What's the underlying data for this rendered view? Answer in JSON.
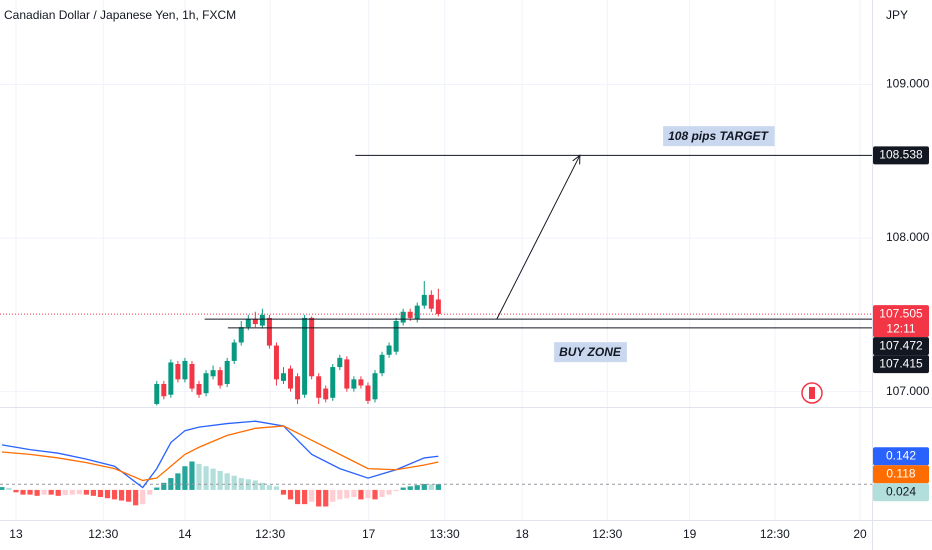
{
  "header": {
    "title": "Canadian Dollar / Japanese Yen, 1h, FXCM",
    "currency": "JPY",
    "countdown": "12:11"
  },
  "chart_data": [
    {
      "type": "candlestick",
      "x": [
        20,
        21,
        22,
        23,
        24,
        25,
        26,
        27,
        28,
        29,
        30,
        31,
        32,
        33,
        34,
        35,
        36,
        37,
        38,
        39,
        40,
        41,
        42,
        43,
        44,
        45,
        46,
        47,
        48,
        49,
        50,
        51,
        52,
        53,
        54,
        55,
        56,
        57,
        58,
        59,
        60
      ],
      "open": [
        106.92,
        107.05,
        106.98,
        107.18,
        107.08,
        107.18,
        107.05,
        106.99,
        107.1,
        107.14,
        107.05,
        107.2,
        107.32,
        107.42,
        107.47,
        107.43,
        107.48,
        107.3,
        107.07,
        107.15,
        107.1,
        106.98,
        107.48,
        107.1,
        107.02,
        106.96,
        107.16,
        107.21,
        107.02,
        107.08,
        107.04,
        106.95,
        107.12,
        107.24,
        107.26,
        107.45,
        107.52,
        107.47,
        107.56,
        107.63,
        107.6
      ],
      "high": [
        107.07,
        107.07,
        107.21,
        107.2,
        107.22,
        107.2,
        107.07,
        107.14,
        107.17,
        107.16,
        107.22,
        107.34,
        107.46,
        107.5,
        107.52,
        107.54,
        107.5,
        107.32,
        107.16,
        107.17,
        107.12,
        107.5,
        107.49,
        107.12,
        107.04,
        107.18,
        107.24,
        107.23,
        107.1,
        107.1,
        107.06,
        107.14,
        107.26,
        107.32,
        107.48,
        107.54,
        107.54,
        107.58,
        107.72,
        107.66,
        107.67
      ],
      "low": [
        106.91,
        106.95,
        106.96,
        107.06,
        107.06,
        107.0,
        106.96,
        106.97,
        107.08,
        107.02,
        107.03,
        107.18,
        107.3,
        107.4,
        107.42,
        107.41,
        107.28,
        107.04,
        107.05,
        107.0,
        106.92,
        106.96,
        107.08,
        106.92,
        106.93,
        106.94,
        107.14,
        107.0,
        107.0,
        107.02,
        106.92,
        106.93,
        107.1,
        107.22,
        107.24,
        107.43,
        107.46,
        107.45,
        107.54,
        107.52,
        107.49
      ],
      "close": [
        107.05,
        106.97,
        107.19,
        107.08,
        107.2,
        107.02,
        106.98,
        107.12,
        107.14,
        107.04,
        107.2,
        107.32,
        107.42,
        107.47,
        107.44,
        107.5,
        107.3,
        107.08,
        107.12,
        107.02,
        106.95,
        107.48,
        107.1,
        106.96,
        106.95,
        107.16,
        107.22,
        107.02,
        107.08,
        107.04,
        106.94,
        107.12,
        107.24,
        107.3,
        107.46,
        107.52,
        107.48,
        107.56,
        107.63,
        107.54,
        107.505
      ],
      "up_color": "#089981",
      "down_color": "#f23645",
      "xlim": [
        -2.27,
        121.6
      ],
      "xticks": [
        {
          "value": 0,
          "label": "13"
        },
        {
          "value": 12.4,
          "label": "12:30"
        },
        {
          "value": 24,
          "label": "14"
        },
        {
          "value": 36.1,
          "label": "12:30"
        },
        {
          "value": 50.1,
          "label": "17"
        },
        {
          "value": 60.9,
          "label": "13:30"
        },
        {
          "value": 71.9,
          "label": "18"
        },
        {
          "value": 84,
          "label": "12:30"
        },
        {
          "value": 95.7,
          "label": "19"
        },
        {
          "value": 107.8,
          "label": "12:30"
        },
        {
          "value": 119.9,
          "label": "20"
        }
      ],
      "ylim": [
        106.9,
        109.55
      ],
      "yticks": [
        {
          "value": 107,
          "label": "107.000"
        },
        {
          "value": 108,
          "label": "108.000"
        },
        {
          "value": 109,
          "label": "109.000"
        }
      ],
      "grid": true,
      "levels": [
        {
          "value": 108.538,
          "from": 48.2
        },
        {
          "value": 107.472,
          "from": 26.8
        },
        {
          "value": 107.415,
          "from": 30.1
        }
      ],
      "arrow": {
        "x": [
          68.3,
          80.1
        ],
        "y": [
          107.472,
          108.538
        ]
      },
      "annotations": [
        "108 pips TARGET",
        "BUY ZONE"
      ]
    },
    {
      "type": "macd",
      "x": [
        -2,
        2,
        6,
        10,
        14,
        18,
        20,
        22,
        24,
        26,
        30,
        34,
        38,
        42,
        46,
        50,
        54,
        58,
        60
      ],
      "series": [
        {
          "color": "#2962ff",
          "values": [
            0.19,
            0.17,
            0.155,
            0.13,
            0.1,
            0.01,
            0.09,
            0.2,
            0.25,
            0.265,
            0.28,
            0.29,
            0.27,
            0.15,
            0.09,
            0.05,
            0.085,
            0.135,
            0.142
          ]
        },
        {
          "color": "#ff6d00",
          "values": [
            0.16,
            0.15,
            0.135,
            0.115,
            0.09,
            0.04,
            0.05,
            0.1,
            0.15,
            0.18,
            0.23,
            0.26,
            0.27,
            0.21,
            0.15,
            0.09,
            0.085,
            0.105,
            0.118
          ]
        }
      ],
      "histogram": {
        "x": [
          -2,
          -1,
          0,
          1,
          2,
          3,
          4,
          5,
          6,
          7,
          8,
          9,
          10,
          11,
          12,
          13,
          14,
          15,
          16,
          17,
          18,
          19,
          20,
          21,
          22,
          23,
          24,
          25,
          26,
          27,
          28,
          29,
          30,
          31,
          32,
          33,
          34,
          35,
          36,
          37,
          38,
          39,
          40,
          41,
          42,
          43,
          44,
          45,
          46,
          47,
          48,
          49,
          50,
          51,
          52,
          53,
          54,
          55,
          56,
          57,
          58,
          59,
          60
        ],
        "values": [
          0.012,
          0.008,
          -0.01,
          -0.02,
          -0.02,
          -0.025,
          -0.02,
          -0.02,
          -0.025,
          -0.022,
          -0.02,
          -0.018,
          -0.02,
          -0.025,
          -0.03,
          -0.035,
          -0.04,
          -0.045,
          -0.05,
          -0.065,
          -0.06,
          -0.02,
          0.01,
          0.03,
          0.05,
          0.07,
          0.1,
          0.12,
          0.11,
          0.1,
          0.09,
          0.08,
          0.07,
          0.06,
          0.05,
          0.045,
          0.04,
          0.03,
          0.02,
          0.015,
          -0.02,
          -0.04,
          -0.06,
          -0.06,
          -0.05,
          -0.07,
          -0.07,
          -0.05,
          -0.04,
          -0.035,
          -0.03,
          -0.04,
          -0.035,
          -0.04,
          -0.03,
          -0.02,
          -0.005,
          0.01,
          0.015,
          0.02,
          0.025,
          0.024,
          0.024
        ],
        "colors": [
          "#26a69a",
          "#b2dfdb",
          "#ff5252",
          "#ffcdd2"
        ]
      },
      "ylim": [
        -0.127,
        0.35
      ]
    }
  ]
}
